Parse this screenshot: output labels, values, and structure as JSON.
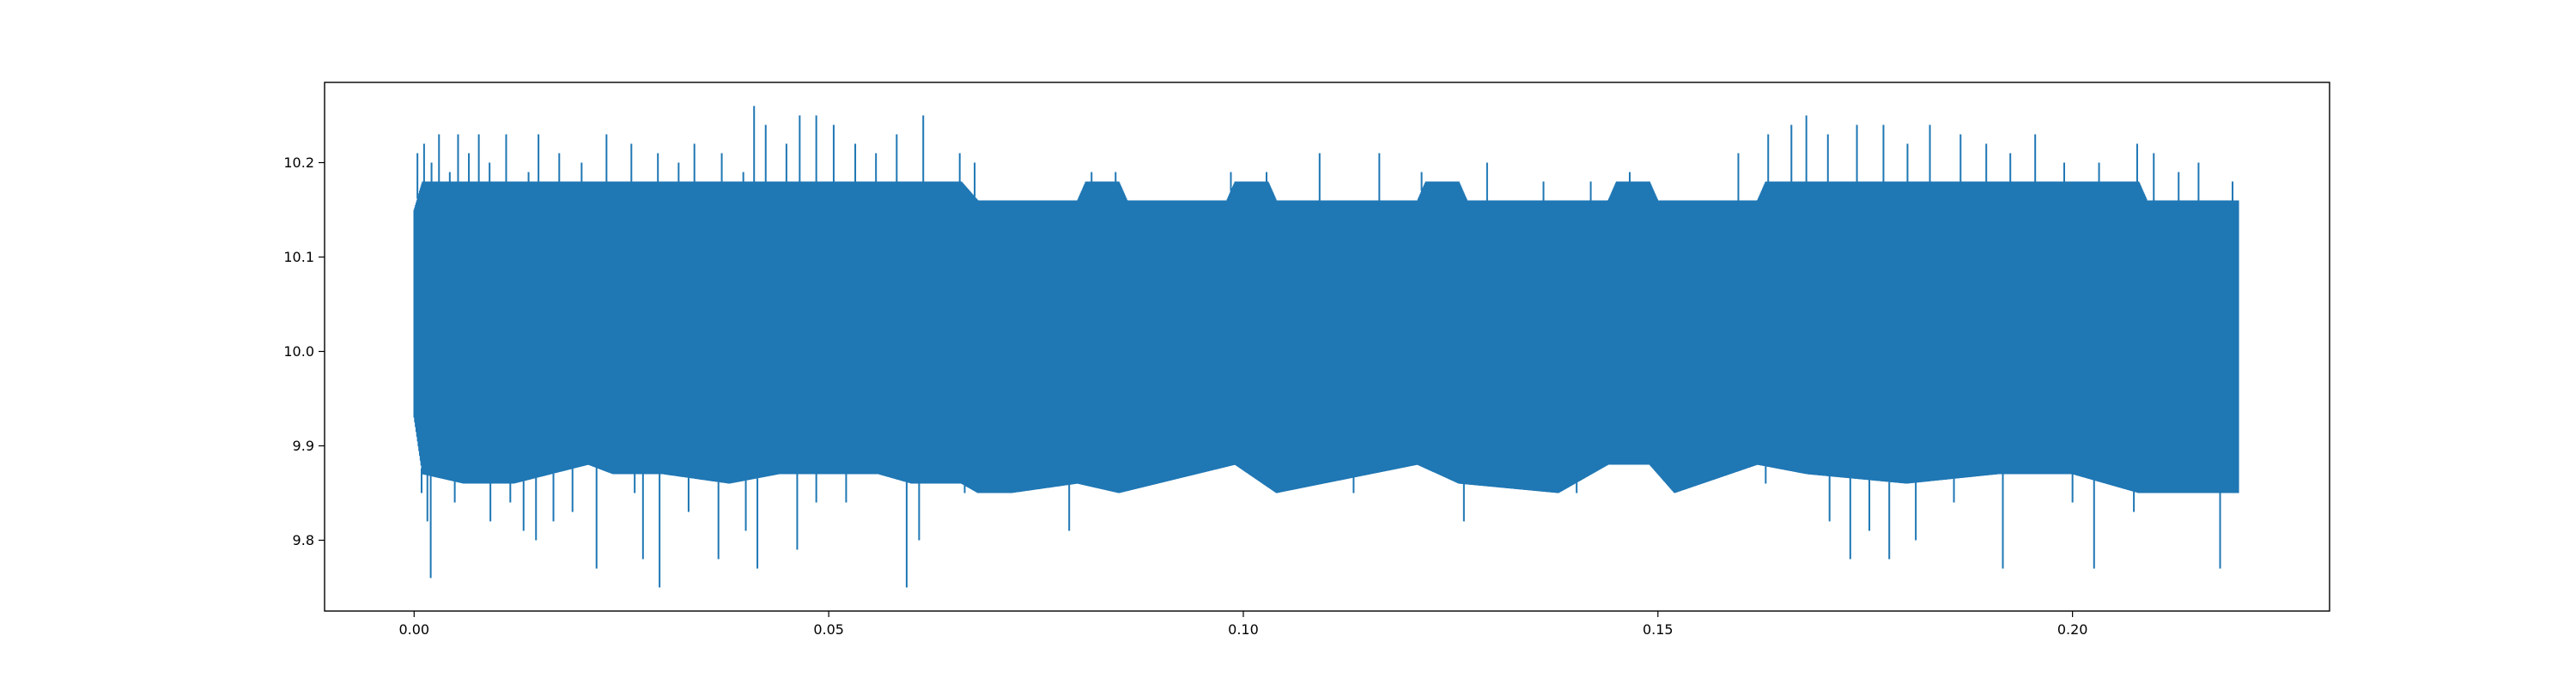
{
  "chart_data": {
    "type": "line",
    "title": "",
    "xlabel": "",
    "ylabel": "",
    "xlim": [
      -0.0108,
      0.231
    ],
    "ylim": [
      9.725,
      10.285
    ],
    "x_ticks": [
      0.0,
      0.05,
      0.1,
      0.15,
      0.2
    ],
    "x_tick_labels": [
      "0.00",
      "0.05",
      "0.10",
      "0.15",
      "0.20"
    ],
    "y_ticks": [
      9.8,
      9.9,
      10.0,
      10.1,
      10.2
    ],
    "y_tick_labels": [
      "9.8",
      "9.9",
      "10.0",
      "10.1",
      "10.2"
    ],
    "grid": false,
    "legend": "none",
    "series_color": "#1f77b4",
    "series": [
      {
        "x_range": [
          0.0,
          0.22
        ],
        "dense_envelope_lower": [
          [
            0.0,
            9.93
          ],
          [
            0.001,
            9.87
          ],
          [
            0.006,
            9.86
          ],
          [
            0.012,
            9.86
          ],
          [
            0.021,
            9.88
          ],
          [
            0.024,
            9.87
          ],
          [
            0.03,
            9.87
          ],
          [
            0.038,
            9.86
          ],
          [
            0.044,
            9.87
          ],
          [
            0.05,
            9.87
          ],
          [
            0.056,
            9.87
          ],
          [
            0.06,
            9.86
          ],
          [
            0.063,
            9.86
          ],
          [
            0.066,
            9.86
          ],
          [
            0.068,
            9.85
          ],
          [
            0.072,
            9.85
          ],
          [
            0.08,
            9.86
          ],
          [
            0.085,
            9.85
          ],
          [
            0.099,
            9.88
          ],
          [
            0.104,
            9.85
          ],
          [
            0.121,
            9.88
          ],
          [
            0.126,
            9.86
          ],
          [
            0.138,
            9.85
          ],
          [
            0.144,
            9.88
          ],
          [
            0.149,
            9.88
          ],
          [
            0.152,
            9.85
          ],
          [
            0.162,
            9.88
          ],
          [
            0.168,
            9.87
          ],
          [
            0.18,
            9.86
          ],
          [
            0.191,
            9.87
          ],
          [
            0.2,
            9.87
          ],
          [
            0.208,
            9.85
          ],
          [
            0.215,
            9.85
          ],
          [
            0.22,
            9.85
          ]
        ],
        "dense_envelope_upper": [
          [
            0.0,
            10.15
          ],
          [
            0.001,
            10.18
          ],
          [
            0.01,
            10.18
          ],
          [
            0.025,
            10.18
          ],
          [
            0.031,
            10.18
          ],
          [
            0.037,
            10.18
          ],
          [
            0.046,
            10.18
          ],
          [
            0.055,
            10.18
          ],
          [
            0.06,
            10.18
          ],
          [
            0.066,
            10.18
          ],
          [
            0.068,
            10.16
          ],
          [
            0.08,
            10.16
          ],
          [
            0.081,
            10.18
          ],
          [
            0.085,
            10.18
          ],
          [
            0.086,
            10.16
          ],
          [
            0.098,
            10.16
          ],
          [
            0.099,
            10.18
          ],
          [
            0.103,
            10.18
          ],
          [
            0.104,
            10.16
          ],
          [
            0.121,
            10.16
          ],
          [
            0.122,
            10.18
          ],
          [
            0.126,
            10.18
          ],
          [
            0.127,
            10.16
          ],
          [
            0.144,
            10.16
          ],
          [
            0.145,
            10.18
          ],
          [
            0.149,
            10.18
          ],
          [
            0.15,
            10.16
          ],
          [
            0.162,
            10.16
          ],
          [
            0.163,
            10.18
          ],
          [
            0.19,
            10.18
          ],
          [
            0.2,
            10.18
          ],
          [
            0.208,
            10.18
          ],
          [
            0.209,
            10.16
          ],
          [
            0.22,
            10.16
          ]
        ],
        "spikes_up": [
          [
            0.0004,
            10.21
          ],
          [
            0.0012,
            10.22
          ],
          [
            0.0021,
            10.2
          ],
          [
            0.003,
            10.23
          ],
          [
            0.0043,
            10.19
          ],
          [
            0.0053,
            10.23
          ],
          [
            0.0066,
            10.21
          ],
          [
            0.0078,
            10.23
          ],
          [
            0.0091,
            10.2
          ],
          [
            0.0111,
            10.23
          ],
          [
            0.0138,
            10.19
          ],
          [
            0.015,
            10.23
          ],
          [
            0.0175,
            10.21
          ],
          [
            0.0202,
            10.2
          ],
          [
            0.0232,
            10.23
          ],
          [
            0.0262,
            10.22
          ],
          [
            0.0294,
            10.21
          ],
          [
            0.0319,
            10.2
          ],
          [
            0.0338,
            10.22
          ],
          [
            0.0371,
            10.21
          ],
          [
            0.0397,
            10.19
          ],
          [
            0.041,
            10.26
          ],
          [
            0.0424,
            10.24
          ],
          [
            0.0449,
            10.22
          ],
          [
            0.0465,
            10.25
          ],
          [
            0.0485,
            10.25
          ],
          [
            0.0506,
            10.24
          ],
          [
            0.0532,
            10.22
          ],
          [
            0.0557,
            10.21
          ],
          [
            0.0582,
            10.23
          ],
          [
            0.0614,
            10.25
          ],
          [
            0.0658,
            10.21
          ],
          [
            0.0676,
            10.2
          ],
          [
            0.0817,
            10.19
          ],
          [
            0.0846,
            10.19
          ],
          [
            0.0985,
            10.19
          ],
          [
            0.1028,
            10.19
          ],
          [
            0.1092,
            10.21
          ],
          [
            0.1164,
            10.21
          ],
          [
            0.1215,
            10.19
          ],
          [
            0.1294,
            10.2
          ],
          [
            0.1362,
            10.18
          ],
          [
            0.1419,
            10.18
          ],
          [
            0.1466,
            10.19
          ],
          [
            0.1597,
            10.21
          ],
          [
            0.1633,
            10.23
          ],
          [
            0.1661,
            10.24
          ],
          [
            0.1679,
            10.25
          ],
          [
            0.1705,
            10.23
          ],
          [
            0.174,
            10.24
          ],
          [
            0.1772,
            10.24
          ],
          [
            0.1801,
            10.22
          ],
          [
            0.1828,
            10.24
          ],
          [
            0.1865,
            10.23
          ],
          [
            0.1896,
            10.22
          ],
          [
            0.1925,
            10.21
          ],
          [
            0.1955,
            10.23
          ],
          [
            0.199,
            10.2
          ],
          [
            0.2032,
            10.2
          ],
          [
            0.2078,
            10.22
          ],
          [
            0.2098,
            10.21
          ],
          [
            0.2128,
            10.19
          ],
          [
            0.2152,
            10.2
          ],
          [
            0.2193,
            10.18
          ]
        ],
        "spikes_down": [
          [
            0.0009,
            9.85
          ],
          [
            0.0016,
            9.82
          ],
          [
            0.002,
            9.76
          ],
          [
            0.0049,
            9.84
          ],
          [
            0.0092,
            9.82
          ],
          [
            0.0116,
            9.84
          ],
          [
            0.0132,
            9.81
          ],
          [
            0.0147,
            9.8
          ],
          [
            0.0168,
            9.82
          ],
          [
            0.0191,
            9.83
          ],
          [
            0.022,
            9.77
          ],
          [
            0.0266,
            9.85
          ],
          [
            0.0276,
            9.78
          ],
          [
            0.0296,
            9.75
          ],
          [
            0.0331,
            9.83
          ],
          [
            0.0367,
            9.78
          ],
          [
            0.04,
            9.81
          ],
          [
            0.0414,
            9.77
          ],
          [
            0.0462,
            9.79
          ],
          [
            0.0485,
            9.84
          ],
          [
            0.0521,
            9.84
          ],
          [
            0.0594,
            9.75
          ],
          [
            0.0609,
            9.8
          ],
          [
            0.0664,
            9.85
          ],
          [
            0.079,
            9.81
          ],
          [
            0.1133,
            9.85
          ],
          [
            0.1266,
            9.82
          ],
          [
            0.1402,
            9.85
          ],
          [
            0.163,
            9.86
          ],
          [
            0.1707,
            9.82
          ],
          [
            0.1732,
            9.78
          ],
          [
            0.1755,
            9.81
          ],
          [
            0.1779,
            9.78
          ],
          [
            0.1811,
            9.8
          ],
          [
            0.1857,
            9.84
          ],
          [
            0.1916,
            9.77
          ],
          [
            0.2,
            9.84
          ],
          [
            0.2026,
            9.77
          ],
          [
            0.2074,
            9.83
          ],
          [
            0.2178,
            9.77
          ]
        ]
      }
    ]
  }
}
